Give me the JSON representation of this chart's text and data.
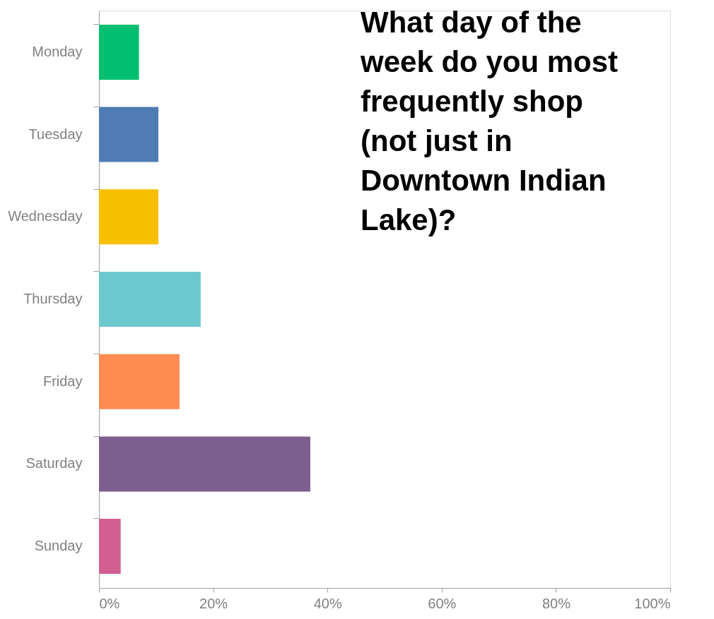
{
  "chart_data": {
    "type": "bar",
    "orientation": "horizontal",
    "title": "What day of the week do you most frequently shop (not just in Downtown Indian Lake)?",
    "categories": [
      "Monday",
      "Tuesday",
      "Wednesday",
      "Thursday",
      "Friday",
      "Saturday",
      "Sunday"
    ],
    "values": [
      7,
      10.4,
      10.4,
      17.8,
      14.1,
      37,
      3.8
    ],
    "colors": [
      "#00bf6f",
      "#507cb6",
      "#f8be00",
      "#6cc8cc",
      "#fe8b52",
      "#7d5e8e",
      "#d35e91"
    ],
    "xlim": [
      0,
      100
    ],
    "xticks": [
      {
        "value": 0,
        "label": "0%"
      },
      {
        "value": 20,
        "label": "20%"
      },
      {
        "value": 40,
        "label": "40%"
      },
      {
        "value": 60,
        "label": "60%"
      },
      {
        "value": 80,
        "label": "80%"
      },
      {
        "value": 100,
        "label": "100%"
      }
    ],
    "grid": false,
    "legend": false
  }
}
